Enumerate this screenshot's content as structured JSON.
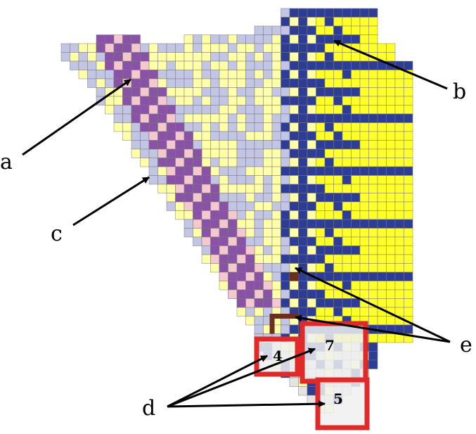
{
  "labels": {
    "a": "a",
    "b": "b",
    "c": "c",
    "d": "d",
    "e": "e"
  },
  "box_numbers": {
    "four": "4",
    "seven": "7",
    "five": "5"
  },
  "colors": {
    "pale_yellow": "#ffffa8",
    "light_blue": "#c2c6e4",
    "purple": "#8a52a6",
    "pink": "#f5c8d0",
    "dark_blue": "#2d3d96",
    "yellow": "#ffff2a",
    "brown": "#6b2f1e",
    "red": "#e02a2a",
    "light_gray": "#e4e4e4",
    "grid_line": "#7a7a7a"
  }
}
